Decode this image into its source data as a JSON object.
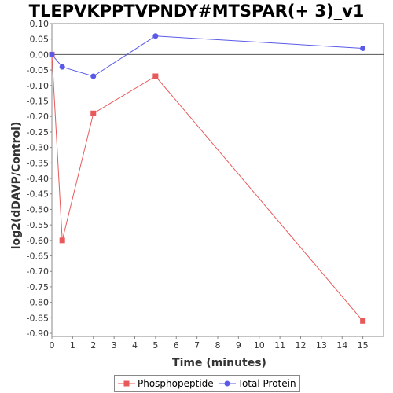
{
  "chart_data": {
    "type": "line",
    "title": "TLEPVKPPTVPNDY#MTSPAR(+ 3)_v1",
    "xlabel": "Time (minutes)",
    "ylabel": "log2(dDAVP/Control)",
    "xlim": [
      0,
      16
    ],
    "ylim": [
      -0.91,
      0.1
    ],
    "xticks": [
      0,
      1,
      2,
      3,
      4,
      5,
      6,
      7,
      8,
      9,
      10,
      11,
      12,
      13,
      14,
      15
    ],
    "yticks": [
      0.1,
      0.05,
      0.0,
      -0.05,
      -0.1,
      -0.15,
      -0.2,
      -0.25,
      -0.3,
      -0.35,
      -0.4,
      -0.45,
      -0.5,
      -0.55,
      -0.6,
      -0.65,
      -0.7,
      -0.75,
      -0.8,
      -0.85,
      -0.9
    ],
    "zero_line": true,
    "grid": false,
    "legend_position": "bottom",
    "series": [
      {
        "name": "Phosphopeptide",
        "color": "#e8595a",
        "marker": "square",
        "x": [
          0,
          0.5,
          2,
          5,
          15
        ],
        "y": [
          0.0,
          -0.6,
          -0.19,
          -0.07,
          -0.86
        ]
      },
      {
        "name": "Total Protein",
        "color": "#5a5ae8",
        "marker": "circle",
        "x": [
          0,
          0.5,
          2,
          5,
          15
        ],
        "y": [
          0.0,
          -0.04,
          -0.07,
          0.06,
          0.02
        ]
      }
    ]
  }
}
